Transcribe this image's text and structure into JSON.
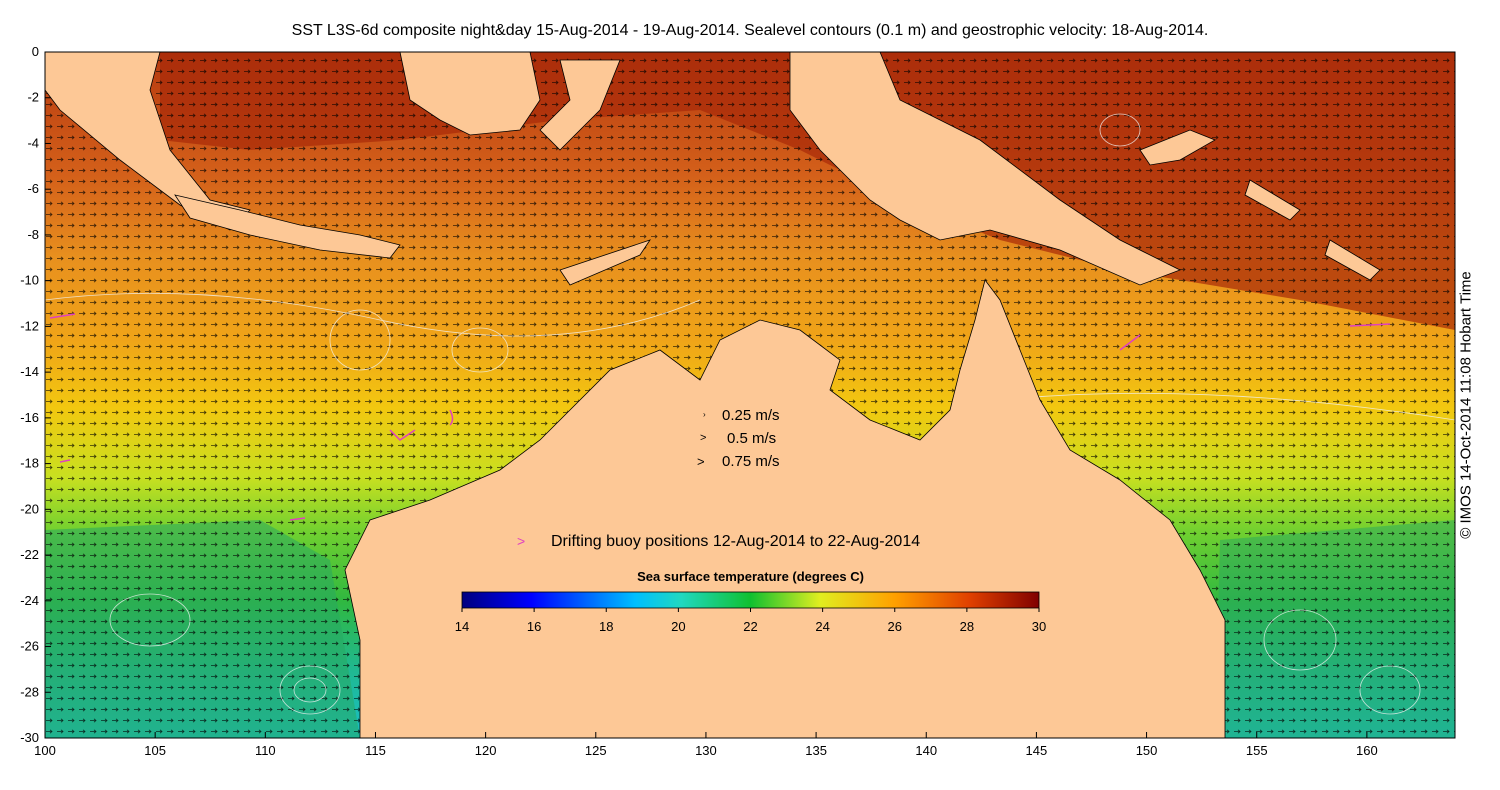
{
  "title": "SST L3S-6d composite night&day 15-Aug-2014 - 19-Aug-2014. Sealevel contours (0.1 m) and geostrophic velocity: 18-Aug-2014.",
  "credit": "© IMOS 14-Oct-2014 11:08 Hobart Time",
  "map": {
    "lon_range": [
      100,
      164
    ],
    "lat_range": [
      -30,
      0
    ],
    "lon_ticks": [
      "100",
      "105",
      "110",
      "115",
      "120",
      "125",
      "130",
      "135",
      "140",
      "145",
      "150",
      "155",
      "160"
    ],
    "lat_ticks": [
      "0",
      "-2",
      "-4",
      "-6",
      "-8",
      "-10",
      "-12",
      "-14",
      "-16",
      "-18",
      "-20",
      "-22",
      "-24",
      "-26",
      "-28",
      "-30"
    ],
    "land_color": "#fdc896",
    "velocity_legend": [
      {
        "label": "0.25 m/s",
        "speed": 0.25
      },
      {
        "label": "0.5 m/s",
        "speed": 0.5
      },
      {
        "label": "0.75 m/s",
        "speed": 0.75
      }
    ],
    "buoy_legend": "Drifting buoy positions 12-Aug-2014 to 22-Aug-2014",
    "buoy_color": "#e040c0"
  },
  "colorbar": {
    "title": "Sea surface temperature (degrees C)",
    "range": [
      14,
      30
    ],
    "ticks": [
      "14",
      "16",
      "18",
      "20",
      "22",
      "24",
      "26",
      "28",
      "30"
    ],
    "colormap": "jet"
  }
}
